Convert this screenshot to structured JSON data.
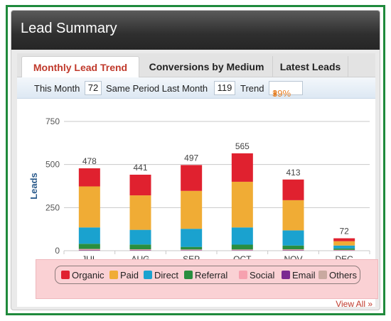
{
  "panel": {
    "title": "Lead Summary"
  },
  "tabs": [
    {
      "label": "Monthly Lead Trend",
      "active": true
    },
    {
      "label": "Conversions by Medium",
      "active": false
    },
    {
      "label": "Latest Leads",
      "active": false
    }
  ],
  "stats": {
    "this_month_label": "This Month",
    "this_month_value": "72",
    "same_period_label": "Same Period Last Month",
    "same_period_value": "119",
    "trend_label": "Trend",
    "trend_value": "39%",
    "trend_direction": "down",
    "trend_color": "#e67e22"
  },
  "chart_data": {
    "type": "bar",
    "stacked": true,
    "categories": [
      "JUL",
      "AUG",
      "SEP",
      "OCT",
      "NOV",
      "DEC"
    ],
    "ylabel": "Leads",
    "ylim": [
      0,
      750
    ],
    "yticks": [
      0,
      250,
      500,
      750
    ],
    "grid": true,
    "legend_position": "bottom",
    "totals": [
      478,
      441,
      497,
      565,
      413,
      72
    ],
    "series": [
      {
        "name": "Organic",
        "color": "#e0212f",
        "values": [
          105,
          120,
          150,
          165,
          120,
          17
        ]
      },
      {
        "name": "Paid",
        "color": "#f0ac35",
        "values": [
          238,
          200,
          220,
          265,
          175,
          25
        ]
      },
      {
        "name": "Direct",
        "color": "#1aa2cf",
        "values": [
          95,
          85,
          105,
          100,
          88,
          17
        ]
      },
      {
        "name": "Referral",
        "color": "#2a8e3f",
        "values": [
          30,
          28,
          15,
          28,
          22,
          8
        ]
      },
      {
        "name": "Social",
        "color": "#f6a1af",
        "values": [
          5,
          4,
          4,
          4,
          4,
          3
        ]
      },
      {
        "name": "Email",
        "color": "#7b2991",
        "values": [
          3,
          2,
          2,
          2,
          2,
          1
        ]
      },
      {
        "name": "Others",
        "color": "#c9a9a0",
        "values": [
          2,
          2,
          1,
          1,
          2,
          1
        ]
      }
    ]
  },
  "footer": {
    "view_all_label": "View All »"
  }
}
